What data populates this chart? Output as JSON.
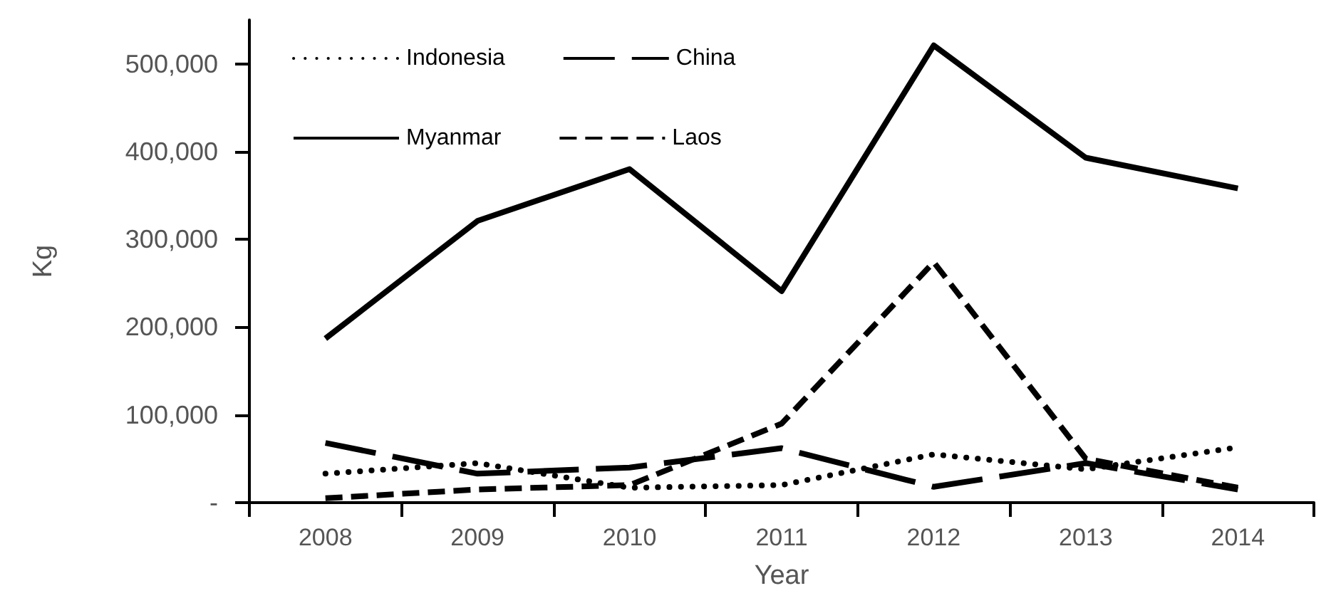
{
  "chart_data": {
    "type": "line",
    "xlabel": "Year",
    "ylabel": "Kg",
    "categories": [
      "2008",
      "2009",
      "2010",
      "2011",
      "2012",
      "2013",
      "2014"
    ],
    "series": [
      {
        "name": "Indonesia",
        "color": "#000000",
        "line_style": "dotted",
        "values": [
          33000,
          45000,
          17000,
          20000,
          55000,
          38000,
          63000
        ]
      },
      {
        "name": "China",
        "color": "#000000",
        "line_style": "longdash",
        "values": [
          68000,
          33000,
          40000,
          62000,
          18000,
          45000,
          15000
        ]
      },
      {
        "name": "Myanmar",
        "color": "#000000",
        "line_style": "solid",
        "values": [
          187000,
          321000,
          380000,
          241000,
          521000,
          393000,
          358000
        ]
      },
      {
        "name": "Laos",
        "color": "#000000",
        "line_style": "dashed",
        "values": [
          5000,
          15000,
          20000,
          90000,
          274000,
          50000,
          17000
        ]
      }
    ],
    "ylim": [
      0,
      550000
    ],
    "yticks": [
      {
        "value": 0,
        "label": "-"
      },
      {
        "value": 100000,
        "label": "100,000"
      },
      {
        "value": 200000,
        "label": "200,000"
      },
      {
        "value": 300000,
        "label": "300,000"
      },
      {
        "value": 400000,
        "label": "400,000"
      },
      {
        "value": 500000,
        "label": "500,000"
      }
    ],
    "grid": false,
    "legend": "top left",
    "marker": "none"
  }
}
